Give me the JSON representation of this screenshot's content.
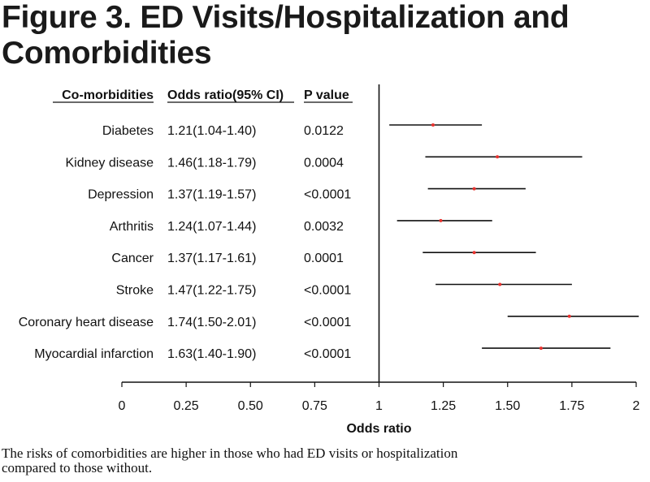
{
  "title_line1": "Figure 3. ED Visits/Hospitalization and",
  "title_line2": "Comorbidities",
  "caption_line1": "The risks of comorbidities are higher in those who had ED visits or hospitalization",
  "caption_line2": "compared to those without.",
  "colors": {
    "point": "#e8322e",
    "line": "#111111"
  },
  "chart_data": {
    "type": "forest",
    "headers": [
      "Co-morbidities",
      "Odds ratio(95% CI)",
      "P value"
    ],
    "rows": [
      {
        "name": "Diabetes",
        "or_text": "1.21(1.04-1.40)",
        "p": "0.0122",
        "or": 1.21,
        "lo": 1.04,
        "hi": 1.4
      },
      {
        "name": "Kidney disease",
        "or_text": "1.46(1.18-1.79)",
        "p": "0.0004",
        "or": 1.46,
        "lo": 1.18,
        "hi": 1.79
      },
      {
        "name": "Depression",
        "or_text": "1.37(1.19-1.57)",
        "p": "<0.0001",
        "or": 1.37,
        "lo": 1.19,
        "hi": 1.57
      },
      {
        "name": "Arthritis",
        "or_text": "1.24(1.07-1.44)",
        "p": "0.0032",
        "or": 1.24,
        "lo": 1.07,
        "hi": 1.44
      },
      {
        "name": "Cancer",
        "or_text": "1.37(1.17-1.61)",
        "p": "0.0001",
        "or": 1.37,
        "lo": 1.17,
        "hi": 1.61
      },
      {
        "name": "Stroke",
        "or_text": "1.47(1.22-1.75)",
        "p": "<0.0001",
        "or": 1.47,
        "lo": 1.22,
        "hi": 1.75
      },
      {
        "name": "Coronary heart disease",
        "or_text": "1.74(1.50-2.01)",
        "p": "<0.0001",
        "or": 1.74,
        "lo": 1.5,
        "hi": 2.01
      },
      {
        "name": "Myocardial infarction",
        "or_text": "1.63(1.40-1.90)",
        "p": "<0.0001",
        "or": 1.63,
        "lo": 1.4,
        "hi": 1.9
      }
    ],
    "xlabel": "Odds ratio",
    "xlim": [
      0,
      2
    ],
    "xticks": [
      0,
      0.25,
      0.5,
      0.75,
      1,
      1.25,
      1.5,
      1.75,
      2
    ],
    "xtick_labels": [
      "0",
      "0.25",
      "0.50",
      "0.75",
      "1",
      "1.25",
      "1.50",
      "1.75",
      "2"
    ],
    "reference_line": 1,
    "grid": false
  }
}
